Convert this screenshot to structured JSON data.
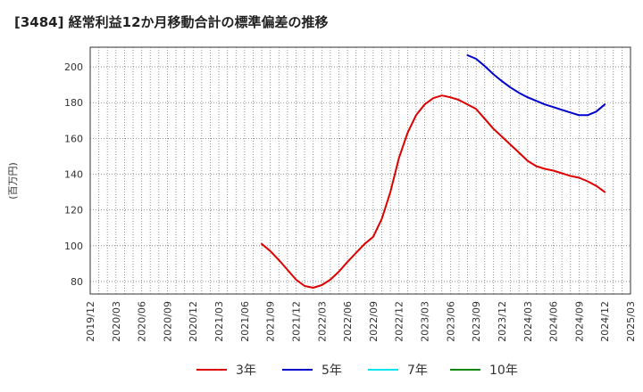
{
  "chart_data": {
    "type": "line",
    "title": "[3484]  経常利益12か月移動合計の標準偏差の推移",
    "ylabel": "(百万円)",
    "xlabel": "",
    "x_ticks": [
      "2019/12",
      "2020/03",
      "2020/06",
      "2020/09",
      "2020/12",
      "2021/03",
      "2021/06",
      "2021/09",
      "2021/12",
      "2022/03",
      "2022/06",
      "2022/09",
      "2022/12",
      "2023/03",
      "2023/06",
      "2023/09",
      "2023/12",
      "2024/03",
      "2024/06",
      "2024/09",
      "2024/12",
      "2025/03"
    ],
    "y_ticks": [
      80,
      100,
      120,
      140,
      160,
      180,
      200
    ],
    "ylim": [
      73,
      211
    ],
    "x_range": [
      "2019/12",
      "2025/03"
    ],
    "grid": true,
    "legend_position": "bottom",
    "series": [
      {
        "name": "3年",
        "color": "#dd0000",
        "points": [
          [
            "2021/08",
            101
          ],
          [
            "2021/09",
            97
          ],
          [
            "2021/10",
            92
          ],
          [
            "2021/11",
            86.5
          ],
          [
            "2021/12",
            81
          ],
          [
            "2022/01",
            77.5
          ],
          [
            "2022/02",
            76.5
          ],
          [
            "2022/03",
            78
          ],
          [
            "2022/04",
            81
          ],
          [
            "2022/05",
            85.5
          ],
          [
            "2022/06",
            91
          ],
          [
            "2022/07",
            96
          ],
          [
            "2022/08",
            101
          ],
          [
            "2022/09",
            105
          ],
          [
            "2022/10",
            115
          ],
          [
            "2022/11",
            130
          ],
          [
            "2022/12",
            149
          ],
          [
            "2023/01",
            163
          ],
          [
            "2023/02",
            173
          ],
          [
            "2023/03",
            179
          ],
          [
            "2023/04",
            182.5
          ],
          [
            "2023/05",
            184
          ],
          [
            "2023/06",
            183
          ],
          [
            "2023/07",
            181.5
          ],
          [
            "2023/08",
            179
          ],
          [
            "2023/09",
            176.5
          ],
          [
            "2023/10",
            171
          ],
          [
            "2023/11",
            165.5
          ],
          [
            "2023/12",
            161
          ],
          [
            "2024/01",
            156.5
          ],
          [
            "2024/02",
            152
          ],
          [
            "2024/03",
            147.5
          ],
          [
            "2024/04",
            144.5
          ],
          [
            "2024/05",
            143
          ],
          [
            "2024/06",
            142
          ],
          [
            "2024/07",
            140.5
          ],
          [
            "2024/08",
            139
          ],
          [
            "2024/09",
            138
          ],
          [
            "2024/10",
            136
          ],
          [
            "2024/11",
            133.5
          ],
          [
            "2024/12",
            130
          ]
        ]
      },
      {
        "name": "5年",
        "color": "#0000cc",
        "points": [
          [
            "2023/08",
            206.5
          ],
          [
            "2023/09",
            204.5
          ],
          [
            "2023/10",
            200.5
          ],
          [
            "2023/11",
            196
          ],
          [
            "2023/12",
            192
          ],
          [
            "2024/01",
            188.5
          ],
          [
            "2024/02",
            185.5
          ],
          [
            "2024/03",
            183
          ],
          [
            "2024/04",
            181
          ],
          [
            "2024/05",
            179
          ],
          [
            "2024/06",
            177.5
          ],
          [
            "2024/07",
            176
          ],
          [
            "2024/08",
            174.5
          ],
          [
            "2024/09",
            173
          ],
          [
            "2024/10",
            173
          ],
          [
            "2024/11",
            175
          ],
          [
            "2024/12",
            179
          ]
        ]
      },
      {
        "name": "7年",
        "color": "#00e5ee",
        "points": []
      },
      {
        "name": "10年",
        "color": "#118811",
        "points": []
      }
    ]
  }
}
